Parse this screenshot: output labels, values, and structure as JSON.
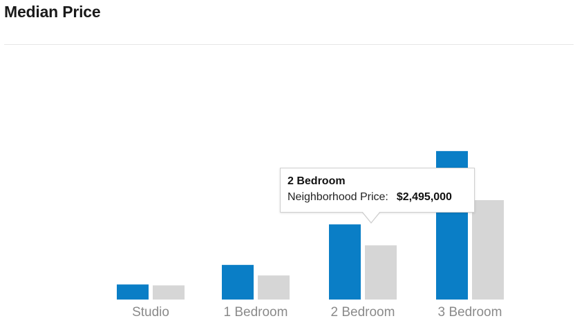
{
  "title": "Median Price",
  "chart_data": {
    "type": "bar",
    "categories": [
      "Studio",
      "1 Bedroom",
      "2 Bedroom",
      "3 Bedroom"
    ],
    "series": [
      {
        "name": "Neighborhood Price",
        "values": [
          500000,
          1150000,
          2495000,
          4930000
        ],
        "color": "#0a7ec6"
      },
      {
        "values": [
          470000,
          800000,
          1800000,
          3300000
        ],
        "color": "#d6d6d6"
      }
    ],
    "ylim": [
      0,
      5500000
    ],
    "grid": false,
    "legend": "none"
  },
  "tooltip": {
    "category": "2 Bedroom",
    "label": "Neighborhood Price:",
    "value": "$2,495,000"
  }
}
